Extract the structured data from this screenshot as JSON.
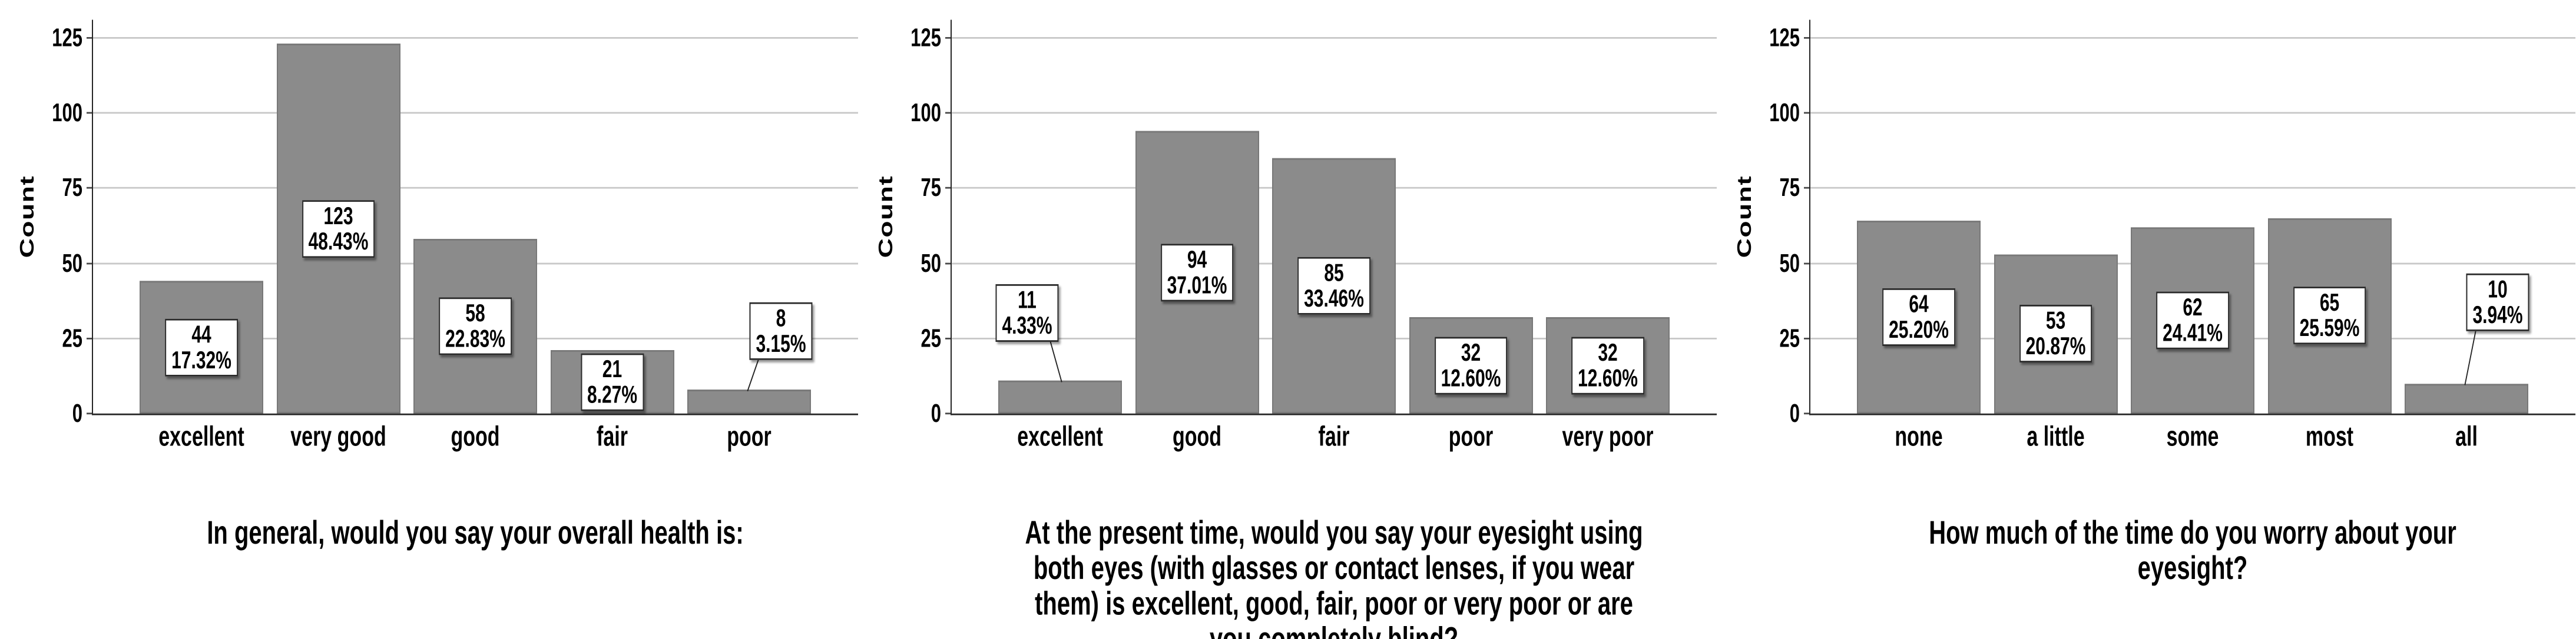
{
  "page": {
    "background": "#ffffff"
  },
  "style": {
    "bar_fill": "#8b8b8b",
    "bar_border": "#787878",
    "gridline_color": "#c8c8c8",
    "axis_color": "#262626",
    "label_box_bg": "#ffffff",
    "label_box_border": "#2a2a2a",
    "callout_color": "#222222",
    "text_color": "#000000"
  },
  "chart_data": [
    {
      "type": "bar",
      "title": "In general, would you say your overall health is:",
      "ylabel": "Count",
      "xlabel": "",
      "ylim": [
        0,
        131
      ],
      "yticks": [
        0,
        25,
        50,
        75,
        100,
        125
      ],
      "grid": true,
      "categories": [
        "excellent",
        "very good",
        "good",
        "fair",
        "poor"
      ],
      "values": [
        44,
        123,
        58,
        21,
        8
      ],
      "percent_labels": [
        "17.32%",
        "48.43%",
        "22.83%",
        "8.27%",
        "3.15%"
      ],
      "bar_label_layout": [
        {
          "placement": "inside"
        },
        {
          "placement": "inside"
        },
        {
          "placement": "inside"
        },
        {
          "placement": "inside"
        },
        {
          "placement": "above",
          "center_count": 27.5,
          "dx": 54
        }
      ]
    },
    {
      "type": "bar",
      "title": "At the present time, would you say your eyesight using\nboth eyes (with glasses or contact lenses, if you wear\nthem) is excellent, good, fair, poor or very poor or are\nyou completely blind?",
      "ylabel": "Count",
      "xlabel": "",
      "ylim": [
        0,
        131
      ],
      "yticks": [
        0,
        25,
        50,
        75,
        100,
        125
      ],
      "grid": true,
      "categories": [
        "excellent",
        "good",
        "fair",
        "poor",
        "very poor"
      ],
      "values": [
        11,
        94,
        85,
        32,
        32
      ],
      "percent_labels": [
        "4.33%",
        "37.01%",
        "33.46%",
        "12.60%",
        "12.60%"
      ],
      "bar_label_layout": [
        {
          "placement": "above",
          "center_count": 33.5,
          "dx": -56
        },
        {
          "placement": "inside"
        },
        {
          "placement": "inside"
        },
        {
          "placement": "inside"
        },
        {
          "placement": "inside"
        }
      ]
    },
    {
      "type": "bar",
      "title": "How much of the time do you worry about your\neyesight?",
      "ylabel": "Count",
      "xlabel": "",
      "ylim": [
        0,
        131
      ],
      "yticks": [
        0,
        25,
        50,
        75,
        100,
        125
      ],
      "grid": true,
      "categories": [
        "none",
        "a little",
        "some",
        "most",
        "all"
      ],
      "values": [
        64,
        53,
        62,
        65,
        10
      ],
      "percent_labels": [
        "25.20%",
        "20.87%",
        "24.41%",
        "25.59%",
        "3.94%"
      ],
      "bar_label_layout": [
        {
          "placement": "inside"
        },
        {
          "placement": "inside"
        },
        {
          "placement": "inside"
        },
        {
          "placement": "inside"
        },
        {
          "placement": "above",
          "center_count": 37,
          "dx": 53
        }
      ]
    }
  ]
}
